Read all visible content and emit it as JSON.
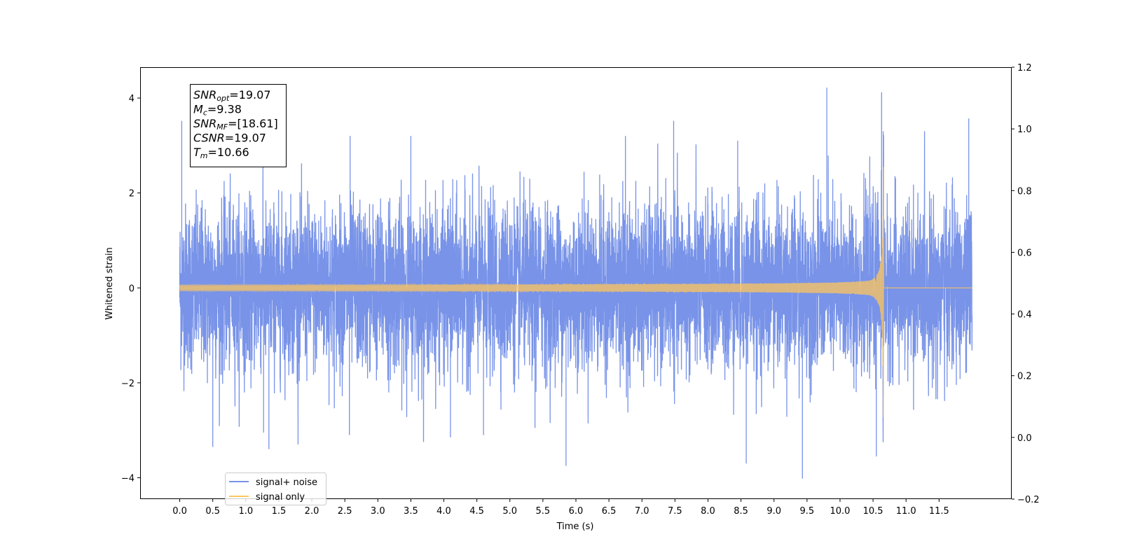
{
  "chart_data": {
    "type": "line",
    "xlabel": "Time (s)",
    "ylabel": "Whitened strain",
    "xlim": [
      -0.6,
      12.6
    ],
    "ylim": [
      -4.45,
      4.65
    ],
    "ylim_right": [
      -0.2,
      1.2
    ],
    "x_ticks": [
      "0.0",
      "0.5",
      "1.0",
      "1.5",
      "2.0",
      "2.5",
      "3.0",
      "3.5",
      "4.0",
      "4.5",
      "5.0",
      "5.5",
      "6.0",
      "6.5",
      "7.0",
      "7.5",
      "8.0",
      "8.5",
      "9.0",
      "9.5",
      "10.0",
      "10.5",
      "11.0",
      "11.5"
    ],
    "y_ticks": [
      "−4",
      "−2",
      "0",
      "2",
      "4"
    ],
    "y_ticks_right": [
      "−0.2",
      "0.0",
      "0.2",
      "0.4",
      "0.6",
      "0.8",
      "1.0",
      "1.2"
    ],
    "grid": false,
    "legend_position": "lower-left",
    "series": [
      {
        "name": "signal+ noise",
        "color": "#7893e8",
        "t_start": 0.0,
        "t_end": 12.0,
        "sigma": 0.85,
        "peaks": [
          {
            "t": 0.03,
            "v": 3.52
          },
          {
            "t": 0.5,
            "v": -3.35
          },
          {
            "t": 1.35,
            "v": -3.4
          },
          {
            "t": 1.27,
            "v": -3.05
          },
          {
            "t": 2.58,
            "v": 3.2
          },
          {
            "t": 2.57,
            "v": -3.1
          },
          {
            "t": 3.5,
            "v": 3.2
          },
          {
            "t": 4.1,
            "v": -3.15
          },
          {
            "t": 4.6,
            "v": -3.1
          },
          {
            "t": 5.38,
            "v": -2.95
          },
          {
            "t": 5.85,
            "v": -3.75
          },
          {
            "t": 7.48,
            "v": 3.52
          },
          {
            "t": 8.58,
            "v": -3.7
          },
          {
            "t": 9.43,
            "v": -4.02
          },
          {
            "t": 9.8,
            "v": 4.22
          },
          {
            "t": 10.55,
            "v": -3.55
          },
          {
            "t": 10.63,
            "v": 4.12
          },
          {
            "t": 11.95,
            "v": 3.57
          },
          {
            "t": 6.75,
            "v": 3.2
          },
          {
            "t": 8.45,
            "v": 3.1
          }
        ]
      },
      {
        "name": "signal only",
        "color": "#ffc65c",
        "t_start": 0.0,
        "t_end": 12.0,
        "merger_time": 10.66,
        "base_amplitude": 0.06,
        "peak_amplitude": 3.0
      }
    ],
    "annotation": {
      "lines": [
        {
          "var": "SNR",
          "sub": "opt",
          "text": "=19.07"
        },
        {
          "var": "M",
          "sub": "c",
          "text": "=9.38"
        },
        {
          "var": "SNR",
          "sub": "MF",
          "text": "=[18.61]"
        },
        {
          "var": "CSNR",
          "sub": "",
          "text": "=19.07"
        },
        {
          "var": "T",
          "sub": "m",
          "text": "=10.66"
        }
      ]
    }
  }
}
